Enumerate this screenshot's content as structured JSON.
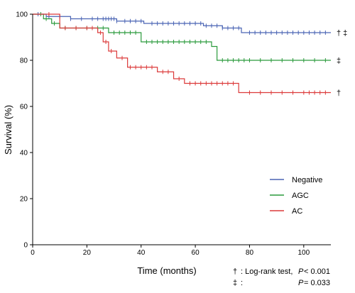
{
  "chart_data": {
    "type": "line",
    "title": "",
    "xlabel": "Time  (months)",
    "ylabel": "Survival  (%)",
    "xlim": [
      0,
      110
    ],
    "ylim": [
      0,
      100
    ],
    "x_ticks": [
      0,
      20,
      40,
      60,
      80,
      100
    ],
    "y_ticks": [
      0,
      20,
      40,
      60,
      80,
      100
    ],
    "grid": false,
    "legend_position": "center-right",
    "series": [
      {
        "name": "Negative",
        "color": "#4a64b4",
        "step_points": [
          [
            0,
            100
          ],
          [
            5,
            99
          ],
          [
            14,
            98
          ],
          [
            31,
            97
          ],
          [
            41,
            96
          ],
          [
            63,
            95
          ],
          [
            70,
            94
          ],
          [
            77,
            92
          ],
          [
            110,
            92
          ]
        ],
        "censor_times": [
          2,
          6,
          10,
          14,
          18,
          22,
          24,
          26,
          27,
          28,
          29,
          30,
          31,
          34,
          36,
          38,
          40,
          44,
          46,
          48,
          50,
          52,
          54,
          56,
          58,
          60,
          62,
          64,
          66,
          68,
          70,
          72,
          74,
          76,
          80,
          82,
          84,
          86,
          88,
          90,
          92,
          94,
          96,
          98,
          100,
          102,
          104,
          106,
          108
        ],
        "end_symbol": "† ‡"
      },
      {
        "name": "AGC",
        "color": "#2a9a3c",
        "step_points": [
          [
            0,
            100
          ],
          [
            4,
            98
          ],
          [
            7,
            96
          ],
          [
            10,
            94
          ],
          [
            28,
            92
          ],
          [
            40,
            88
          ],
          [
            66,
            86
          ],
          [
            68,
            80
          ],
          [
            110,
            80
          ]
        ],
        "censor_times": [
          3,
          5,
          8,
          12,
          16,
          20,
          24,
          26,
          30,
          32,
          34,
          36,
          38,
          42,
          44,
          46,
          48,
          50,
          52,
          54,
          56,
          58,
          60,
          62,
          64,
          70,
          72,
          74,
          76,
          78,
          80,
          84,
          88,
          92,
          96,
          100,
          104,
          108
        ],
        "end_symbol": "‡"
      },
      {
        "name": "AC",
        "color": "#dc3a3a",
        "step_points": [
          [
            0,
            100
          ],
          [
            10,
            94
          ],
          [
            24,
            92
          ],
          [
            26,
            88
          ],
          [
            28,
            84
          ],
          [
            31,
            81
          ],
          [
            35,
            77
          ],
          [
            39,
            77
          ],
          [
            46,
            75
          ],
          [
            52,
            72
          ],
          [
            56,
            70
          ],
          [
            76,
            66
          ],
          [
            110,
            66
          ]
        ],
        "censor_times": [
          6,
          12,
          16,
          20,
          22,
          25,
          27,
          29,
          33,
          36,
          38,
          40,
          42,
          44,
          48,
          50,
          54,
          58,
          60,
          62,
          64,
          66,
          68,
          70,
          72,
          74,
          80,
          84,
          88,
          92,
          96,
          100,
          102,
          104,
          106,
          108
        ],
        "end_symbol": "†"
      }
    ],
    "footnote": {
      "line1_symbol": "†",
      "line1_text": "Log-rank test, ",
      "line1_p": "P",
      "line1_value": " < 0.001",
      "line2_symbol": "‡",
      "line2_p": "P",
      "line2_value": " = 0.033"
    }
  }
}
